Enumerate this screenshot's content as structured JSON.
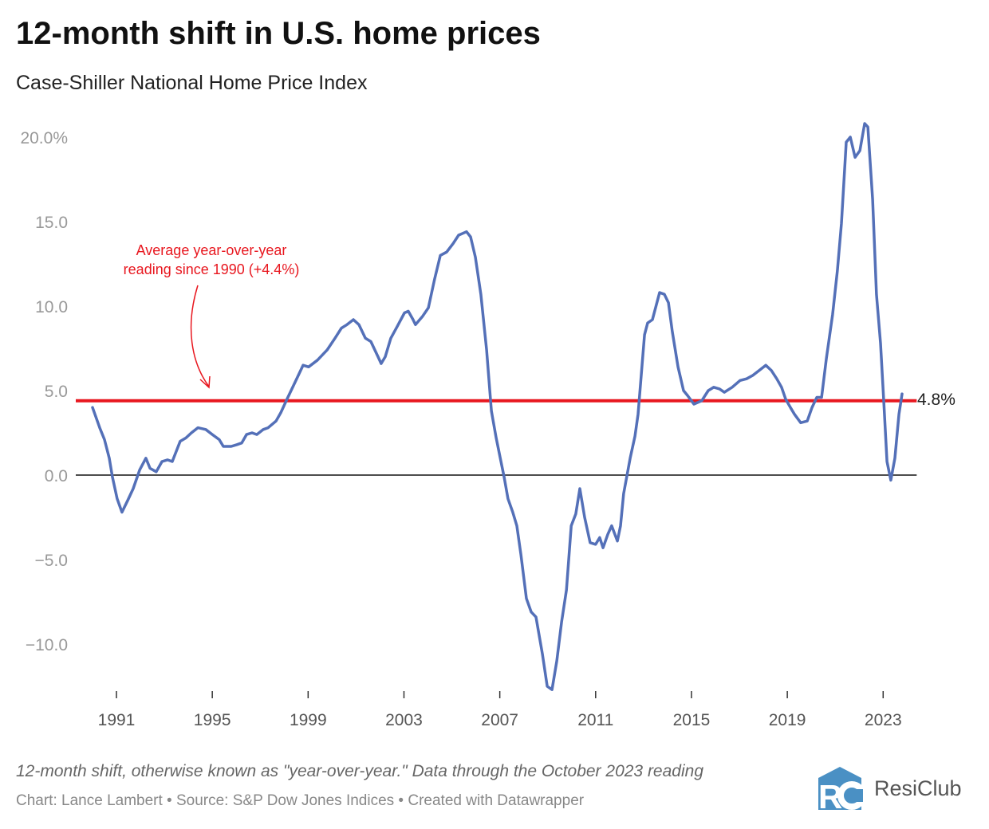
{
  "title": "12-month shift in U.S. home prices",
  "subtitle": "Case-Shiller National Home Price Index",
  "note": "12-month shift, otherwise known as \"year-over-year.\" Data through the October 2023 reading",
  "credits": "Chart: Lance Lambert • Source: S&P Dow Jones Indices • Created with Datawrapper",
  "logo": {
    "text": "ResiClub",
    "mark": "RC",
    "color": "#4a90c4"
  },
  "chart_data": {
    "type": "line",
    "title": "12-month shift in U.S. home prices",
    "subtitle": "Case-Shiller National Home Price Index",
    "xlabel": "",
    "ylabel": "",
    "xlim": [
      1990,
      2024.4
    ],
    "ylim": [
      -12.9,
      20.9
    ],
    "x_ticks": [
      "1991",
      "1995",
      "1999",
      "2003",
      "2007",
      "2011",
      "2015",
      "2019",
      "2023"
    ],
    "y_ticks": [
      {
        "value": 20,
        "label": "20.0%"
      },
      {
        "value": 15,
        "label": "15.0"
      },
      {
        "value": 10,
        "label": "10.0"
      },
      {
        "value": 5,
        "label": "5.0"
      },
      {
        "value": 0,
        "label": "0.0"
      },
      {
        "value": -5,
        "label": "−5.0"
      },
      {
        "value": -10,
        "label": "−10.0"
      }
    ],
    "grid": false,
    "colors": {
      "series": "#5470b8",
      "average": "#e8171f",
      "zero": "#111111"
    },
    "reference_line": {
      "value": 4.4,
      "label": [
        "Average year-over-year",
        "reading since 1990 (+4.4%)"
      ]
    },
    "end_label": "4.8%",
    "series": [
      {
        "points": [
          [
            1990.0,
            4.0
          ],
          [
            1990.3,
            2.8
          ],
          [
            1990.5,
            2.1
          ],
          [
            1990.7,
            1.0
          ],
          [
            1990.83,
            -0.1
          ],
          [
            1991.03,
            -1.4
          ],
          [
            1991.23,
            -2.2
          ],
          [
            1991.47,
            -1.5
          ],
          [
            1991.7,
            -0.8
          ],
          [
            1991.97,
            0.3
          ],
          [
            1992.23,
            1.0
          ],
          [
            1992.4,
            0.4
          ],
          [
            1992.66,
            0.2
          ],
          [
            1992.9,
            0.8
          ],
          [
            1993.13,
            0.9
          ],
          [
            1993.33,
            0.8
          ],
          [
            1993.66,
            2.0
          ],
          [
            1993.9,
            2.2
          ],
          [
            1994.13,
            2.5
          ],
          [
            1994.4,
            2.8
          ],
          [
            1994.73,
            2.7
          ],
          [
            1995.0,
            2.4
          ],
          [
            1995.29,
            2.1
          ],
          [
            1995.46,
            1.7
          ],
          [
            1995.79,
            1.7
          ],
          [
            1996.03,
            1.8
          ],
          [
            1996.23,
            1.9
          ],
          [
            1996.43,
            2.4
          ],
          [
            1996.66,
            2.5
          ],
          [
            1996.86,
            2.4
          ],
          [
            1997.13,
            2.7
          ],
          [
            1997.33,
            2.8
          ],
          [
            1997.66,
            3.2
          ],
          [
            1997.86,
            3.7
          ],
          [
            1998.12,
            4.5
          ],
          [
            1998.39,
            5.3
          ],
          [
            1998.69,
            6.2
          ],
          [
            1998.79,
            6.5
          ],
          [
            1999.02,
            6.4
          ],
          [
            1999.39,
            6.8
          ],
          [
            1999.79,
            7.4
          ],
          [
            2000.12,
            8.1
          ],
          [
            2000.39,
            8.7
          ],
          [
            2000.62,
            8.9
          ],
          [
            2000.89,
            9.2
          ],
          [
            2001.12,
            8.9
          ],
          [
            2001.39,
            8.1
          ],
          [
            2001.62,
            7.9
          ],
          [
            2001.92,
            7.0
          ],
          [
            2002.05,
            6.6
          ],
          [
            2002.22,
            7.0
          ],
          [
            2002.45,
            8.1
          ],
          [
            2002.72,
            8.8
          ],
          [
            2003.02,
            9.6
          ],
          [
            2003.18,
            9.7
          ],
          [
            2003.38,
            9.2
          ],
          [
            2003.48,
            8.9
          ],
          [
            2003.78,
            9.4
          ],
          [
            2004.02,
            9.9
          ],
          [
            2004.28,
            11.6
          ],
          [
            2004.52,
            13.0
          ],
          [
            2004.78,
            13.2
          ],
          [
            2005.05,
            13.7
          ],
          [
            2005.28,
            14.2
          ],
          [
            2005.45,
            14.3
          ],
          [
            2005.61,
            14.4
          ],
          [
            2005.78,
            14.1
          ],
          [
            2005.98,
            12.9
          ],
          [
            2006.21,
            10.7
          ],
          [
            2006.45,
            7.4
          ],
          [
            2006.65,
            3.8
          ],
          [
            2006.85,
            2.2
          ],
          [
            2007.05,
            0.8
          ],
          [
            2007.18,
            -0.1
          ],
          [
            2007.34,
            -1.4
          ],
          [
            2007.54,
            -2.2
          ],
          [
            2007.71,
            -3.0
          ],
          [
            2007.88,
            -4.7
          ],
          [
            2008.11,
            -7.3
          ],
          [
            2008.31,
            -8.1
          ],
          [
            2008.51,
            -8.4
          ],
          [
            2008.78,
            -10.6
          ],
          [
            2008.98,
            -12.5
          ],
          [
            2009.18,
            -12.7
          ],
          [
            2009.38,
            -11.0
          ],
          [
            2009.58,
            -8.7
          ],
          [
            2009.78,
            -6.8
          ],
          [
            2009.98,
            -3.0
          ],
          [
            2010.17,
            -2.3
          ],
          [
            2010.34,
            -0.8
          ],
          [
            2010.54,
            -2.5
          ],
          [
            2010.77,
            -4.0
          ],
          [
            2011.0,
            -4.1
          ],
          [
            2011.17,
            -3.7
          ],
          [
            2011.31,
            -4.3
          ],
          [
            2011.51,
            -3.5
          ],
          [
            2011.67,
            -3.0
          ],
          [
            2011.91,
            -3.9
          ],
          [
            2012.04,
            -3.0
          ],
          [
            2012.17,
            -1.1
          ],
          [
            2012.44,
            1.0
          ],
          [
            2012.64,
            2.3
          ],
          [
            2012.77,
            3.6
          ],
          [
            2013.04,
            8.3
          ],
          [
            2013.17,
            9.0
          ],
          [
            2013.37,
            9.2
          ],
          [
            2013.67,
            10.8
          ],
          [
            2013.87,
            10.7
          ],
          [
            2014.04,
            10.2
          ],
          [
            2014.2,
            8.5
          ],
          [
            2014.44,
            6.4
          ],
          [
            2014.67,
            5.0
          ],
          [
            2014.84,
            4.7
          ],
          [
            2015.1,
            4.2
          ],
          [
            2015.43,
            4.4
          ],
          [
            2015.7,
            5.0
          ],
          [
            2015.93,
            5.2
          ],
          [
            2016.17,
            5.1
          ],
          [
            2016.37,
            4.9
          ],
          [
            2016.7,
            5.2
          ],
          [
            2017.03,
            5.6
          ],
          [
            2017.3,
            5.7
          ],
          [
            2017.56,
            5.9
          ],
          [
            2017.83,
            6.2
          ],
          [
            2018.1,
            6.5
          ],
          [
            2018.33,
            6.2
          ],
          [
            2018.56,
            5.7
          ],
          [
            2018.76,
            5.2
          ],
          [
            2018.93,
            4.5
          ],
          [
            2019.13,
            4.0
          ],
          [
            2019.3,
            3.6
          ],
          [
            2019.56,
            3.1
          ],
          [
            2019.83,
            3.2
          ],
          [
            2020.03,
            4.0
          ],
          [
            2020.23,
            4.6
          ],
          [
            2020.43,
            4.6
          ],
          [
            2020.63,
            6.9
          ],
          [
            2020.89,
            9.5
          ],
          [
            2021.09,
            12.1
          ],
          [
            2021.26,
            14.9
          ],
          [
            2021.46,
            19.7
          ],
          [
            2021.63,
            20.0
          ],
          [
            2021.83,
            18.8
          ],
          [
            2022.03,
            19.2
          ],
          [
            2022.23,
            20.8
          ],
          [
            2022.36,
            20.6
          ],
          [
            2022.56,
            16.3
          ],
          [
            2022.72,
            10.7
          ],
          [
            2022.89,
            7.8
          ],
          [
            2023.02,
            4.5
          ],
          [
            2023.16,
            0.8
          ],
          [
            2023.32,
            -0.3
          ],
          [
            2023.49,
            1.0
          ],
          [
            2023.66,
            3.6
          ],
          [
            2023.79,
            4.8
          ]
        ]
      }
    ]
  }
}
